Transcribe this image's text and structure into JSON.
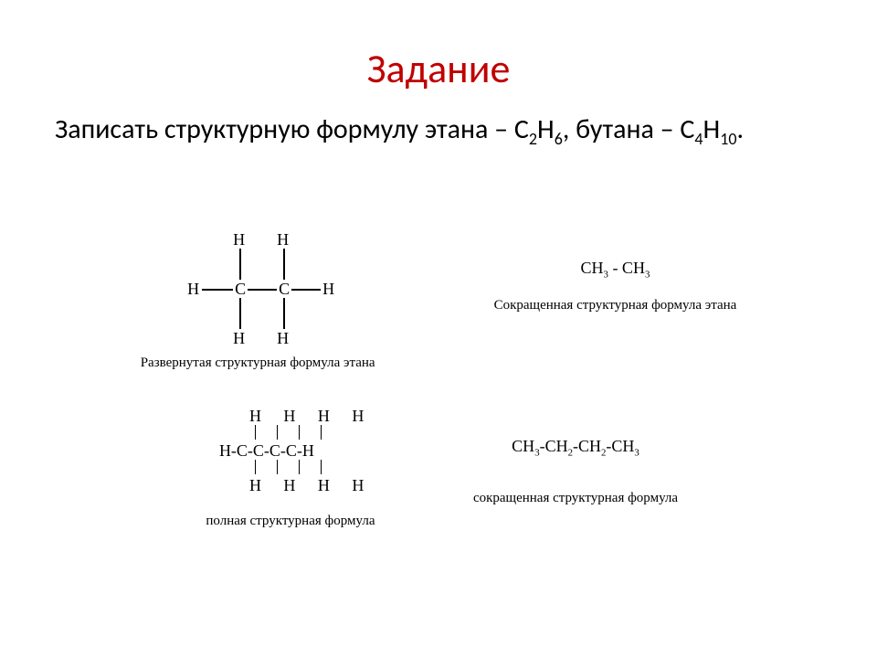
{
  "title": {
    "text": "Задание",
    "color": "#c00000",
    "fontsize": 44
  },
  "task": {
    "text_html": "Записать структурную формулу этана – C<sub>2</sub>H<sub>6</sub>, бутана – C<sub>4</sub>H<sub>10</sub>.",
    "fontsize": 30
  },
  "ethane_full": {
    "type": "structural-formula",
    "atoms": {
      "C": 2,
      "H": 6
    },
    "bonds": [
      [
        "C1",
        "C2"
      ],
      [
        "C1",
        "H_left"
      ],
      [
        "C1",
        "H_top1"
      ],
      [
        "C1",
        "H_bot1"
      ],
      [
        "C2",
        "H_right"
      ],
      [
        "C2",
        "H_top2"
      ],
      [
        "C2",
        "H_bot2"
      ]
    ],
    "caption": "Развернутая структурная формула этана"
  },
  "ethane_short": {
    "type": "condensed-formula",
    "formula_html": "CH<sub>3</sub> - CH<sub>3</sub>",
    "caption": "Сокращенная структурная формула этана"
  },
  "butane_full": {
    "type": "structural-formula",
    "atoms": {
      "C": 4,
      "H": 10
    },
    "rows": {
      "top": "H H H H",
      "middle": "H-C-C-C-C-H",
      "bottom": "H H H H"
    },
    "vbonds_per_carbon": 2,
    "caption": "полная структурная формула"
  },
  "butane_short": {
    "type": "condensed-formula",
    "formula_html": "CH<sub>3</sub>-CH<sub>2</sub>-CH<sub>2</sub>-CH<sub>3</sub>",
    "caption": "сокращенная структурная формула"
  },
  "style": {
    "background_color": "#ffffff",
    "title_color": "#c00000",
    "text_color": "#000000",
    "caption_fontsize": 15,
    "formula_fontsize": 18,
    "font_family_body": "Calibri",
    "font_family_formula": "Times New Roman"
  }
}
